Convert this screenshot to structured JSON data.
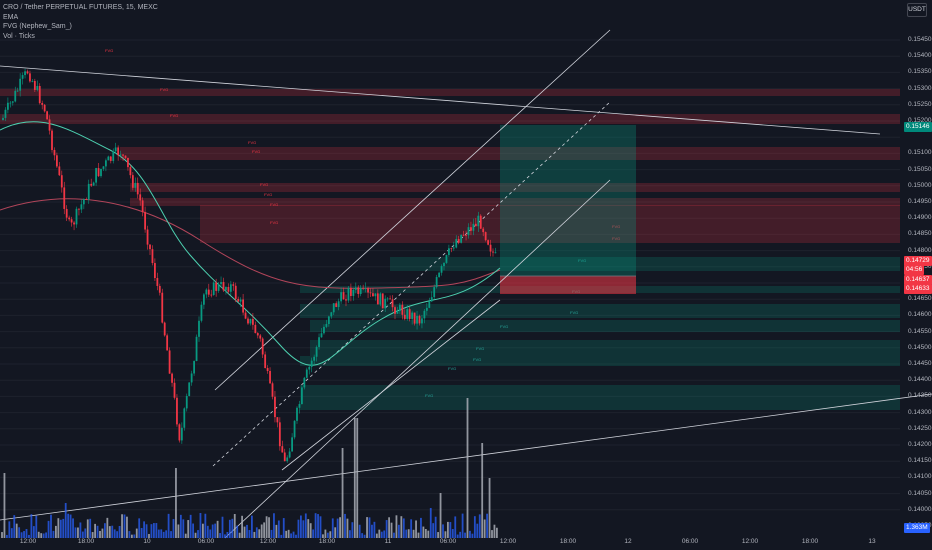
{
  "header": {
    "symbol": "CRO / Tether PERPETUAL FUTURES, 15, MEXC",
    "indicators": [
      "EMA",
      "FVG (Nephew_Sam_)",
      "Vol · Ticks"
    ],
    "currency": "USDT"
  },
  "fvg_label": "FVG",
  "price_axis": {
    "ticks": [
      "0.15450",
      "0.15400",
      "0.15350",
      "0.15300",
      "0.15250",
      "0.15200",
      "0.15100",
      "0.15050",
      "0.15000",
      "0.14950",
      "0.14900",
      "0.14850",
      "0.14800",
      "0.14750",
      "0.14650",
      "0.14600",
      "0.14550",
      "0.14500",
      "0.14450",
      "0.14400",
      "0.14350",
      "0.14300",
      "0.14250",
      "0.14200",
      "0.14150",
      "0.14100",
      "0.14050",
      "0.14000",
      "0.13950"
    ],
    "badges": [
      {
        "text": "0.15146",
        "color": "#00897b"
      },
      {
        "text": "0.14729",
        "color": "#f23645"
      },
      {
        "text": "04:56",
        "color": "#f23645"
      },
      {
        "text": "0.14637",
        "color": "#f23645"
      },
      {
        "text": "0.14633",
        "color": "#f23645"
      },
      {
        "text": "1.363M",
        "color": "#2962ff"
      }
    ]
  },
  "time_axis": [
    "12:00",
    "18:00",
    "10",
    "06:00",
    "12:00",
    "18:00",
    "11",
    "06:00",
    "12:00",
    "18:00",
    "12",
    "06:00",
    "12:00",
    "18:00",
    "13"
  ],
  "colors": {
    "background": "#131722",
    "bull": "#089981",
    "bear": "#f23645",
    "ema_fast": "#4dd0b0",
    "ema_slow": "#b2455a",
    "volume_blue": "#2962ff"
  }
}
